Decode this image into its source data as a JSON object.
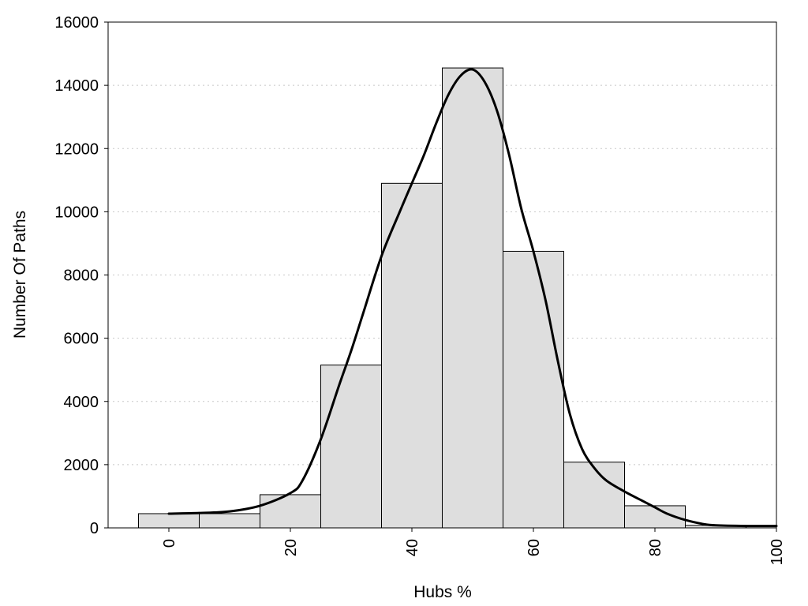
{
  "chart_data": {
    "type": "bar",
    "title": "",
    "xlabel": "Hubs %",
    "ylabel": "Number Of Paths",
    "xlim": [
      -10,
      100
    ],
    "ylim": [
      0,
      16000
    ],
    "x_ticks": [
      0,
      20,
      40,
      60,
      80,
      100
    ],
    "y_ticks": [
      0,
      2000,
      4000,
      6000,
      8000,
      10000,
      12000,
      14000,
      16000
    ],
    "bin_width": 10,
    "grid": "horizontal dotted",
    "bars": [
      {
        "center": 0,
        "value": 450
      },
      {
        "center": 10,
        "value": 450
      },
      {
        "center": 20,
        "value": 1050
      },
      {
        "center": 30,
        "value": 5150
      },
      {
        "center": 40,
        "value": 10900
      },
      {
        "center": 50,
        "value": 14550
      },
      {
        "center": 60,
        "value": 8750
      },
      {
        "center": 70,
        "value": 2080
      },
      {
        "center": 80,
        "value": 700
      },
      {
        "center": 90,
        "value": 80
      }
    ],
    "curve": {
      "x": [
        0,
        5,
        10,
        15,
        20,
        22,
        25,
        28,
        30,
        32,
        35,
        38,
        40,
        42,
        44,
        46,
        48,
        50,
        52,
        54,
        56,
        58,
        60,
        62,
        64,
        66,
        68,
        70,
        72,
        75,
        78,
        80,
        82,
        85,
        88,
        90,
        95,
        100
      ],
      "y": [
        450,
        470,
        520,
        700,
        1100,
        1500,
        2800,
        4500,
        5600,
        6800,
        8600,
        10000,
        10900,
        11800,
        12800,
        13700,
        14300,
        14500,
        14100,
        13200,
        11800,
        10100,
        8750,
        7200,
        5300,
        3600,
        2500,
        1900,
        1500,
        1150,
        850,
        650,
        450,
        250,
        120,
        80,
        60,
        60
      ]
    }
  }
}
